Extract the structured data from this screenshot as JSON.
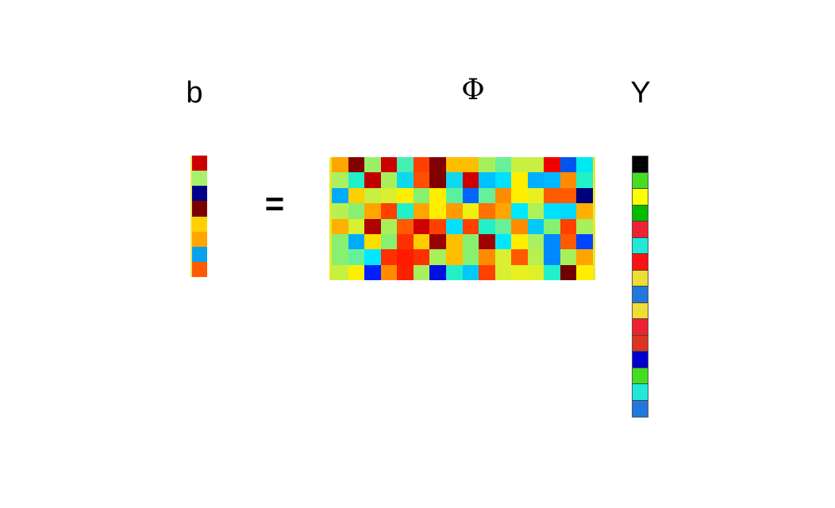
{
  "labels": {
    "b": "b",
    "phi": "Φ",
    "y": "Y",
    "equals": "="
  },
  "b_vector": [
    "#cc0000",
    "#a6f26a",
    "#00008b",
    "#7a0000",
    "#ffd000",
    "#ffa500",
    "#0aa0f0",
    "#ff5a00"
  ],
  "phi_matrix": [
    [
      "#ffa500",
      "#800000",
      "#99f066",
      "#cc0000",
      "#44f0b4",
      "#ff4000",
      "#800000",
      "#ffbf00",
      "#ffbf00",
      "#a8f05a",
      "#66f09a",
      "#c8f040",
      "#c8f040",
      "#ee0000",
      "#0055ee",
      "#00e8f0"
    ],
    [
      "#aaf060",
      "#22f0c8",
      "#c00000",
      "#a8f05a",
      "#0cd8f0",
      "#ff5000",
      "#800000",
      "#10d8f0",
      "#cc0000",
      "#00c0ff",
      "#00e0ff",
      "#ffee00",
      "#00b0ff",
      "#00b8ff",
      "#ff8c00",
      "#22f0c8"
    ],
    [
      "#00aaff",
      "#ffd000",
      "#c8f040",
      "#d8f030",
      "#ffee00",
      "#88f070",
      "#ffee00",
      "#5af0a0",
      "#0066ff",
      "#66f09a",
      "#ff8c00",
      "#ffee00",
      "#e8f020",
      "#ff5a00",
      "#ff5a00",
      "#00007a"
    ],
    [
      "#b8f050",
      "#88f070",
      "#ffa500",
      "#ff4000",
      "#22f0c8",
      "#ffa500",
      "#ffee00",
      "#ff9a00",
      "#eef010",
      "#ff7000",
      "#ffa500",
      "#00e8ff",
      "#b0f058",
      "#00e0ff",
      "#00d8ff",
      "#ffb000"
    ],
    [
      "#ffb000",
      "#d8f030",
      "#b00000",
      "#a8f05a",
      "#ff5a00",
      "#d00000",
      "#ff4000",
      "#00e0ff",
      "#ff4000",
      "#22f0c8",
      "#66f09a",
      "#ff8c00",
      "#00c8f8",
      "#88f070",
      "#ff4000",
      "#a8f05a"
    ],
    [
      "#88f070",
      "#00aaff",
      "#ffdd00",
      "#88f070",
      "#ff3000",
      "#ffcc00",
      "#990000",
      "#ffbf00",
      "#88f070",
      "#a00000",
      "#00e8ff",
      "#ffee00",
      "#aaf060",
      "#0088ff",
      "#ff5a00",
      "#0044ff"
    ],
    [
      "#88f070",
      "#66f09a",
      "#00e8ff",
      "#ff3000",
      "#ff1a00",
      "#ff3000",
      "#a8f05a",
      "#ffbf00",
      "#88f070",
      "#ff8c00",
      "#d8f030",
      "#ff5a00",
      "#b8f050",
      "#0088ff",
      "#a8f05a",
      "#ffa500"
    ],
    [
      "#c8f040",
      "#ffee00",
      "#0020ff",
      "#ff8c00",
      "#ff2000",
      "#a8f05a",
      "#0010e0",
      "#22f0c8",
      "#00c8f8",
      "#ff4000",
      "#d8f030",
      "#e8f020",
      "#e0f028",
      "#22f0c8",
      "#700000",
      "#ffee00"
    ]
  ],
  "y_vector": [
    "#000000",
    "#44dd22",
    "#ffff00",
    "#00bb00",
    "#ee2233",
    "#22e8d8",
    "#ff1111",
    "#eedd33",
    "#2277dd",
    "#eedd33",
    "#ee2233",
    "#dd3322",
    "#0000cc",
    "#44dd22",
    "#22e8d8",
    "#2277dd"
  ]
}
